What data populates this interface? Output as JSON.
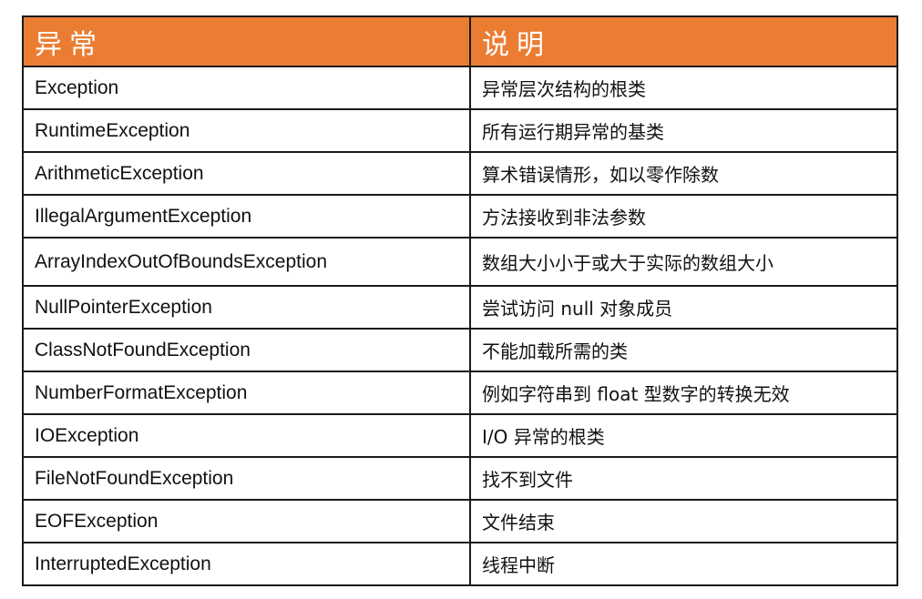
{
  "table": {
    "headers": [
      "异常",
      "说明"
    ],
    "rows": [
      [
        "Exception",
        "异常层次结构的根类"
      ],
      [
        "RuntimeException",
        "所有运行期异常的基类"
      ],
      [
        "ArithmeticException",
        "算术错误情形，如以零作除数"
      ],
      [
        "IllegalArgumentException",
        "方法接收到非法参数"
      ],
      [
        "ArrayIndexOutOfBoundsException",
        "数组大小小于或大于实际的数组大小"
      ],
      [
        "NullPointerException",
        "尝试访问  null 对象成员"
      ],
      [
        "ClassNotFoundException",
        "不能加载所需的类"
      ],
      [
        "NumberFormatException",
        "例如字符串到 float 型数字的转换无效"
      ],
      [
        "IOException",
        "I/O 异常的根类"
      ],
      [
        "FileNotFoundException",
        "找不到文件"
      ],
      [
        "EOFException",
        "文件结束"
      ],
      [
        "InterruptedException",
        "线程中断"
      ]
    ]
  },
  "colors": {
    "header_bg": "#ea7d32",
    "header_text": "#ffffff",
    "border": "#1a1a1a"
  }
}
